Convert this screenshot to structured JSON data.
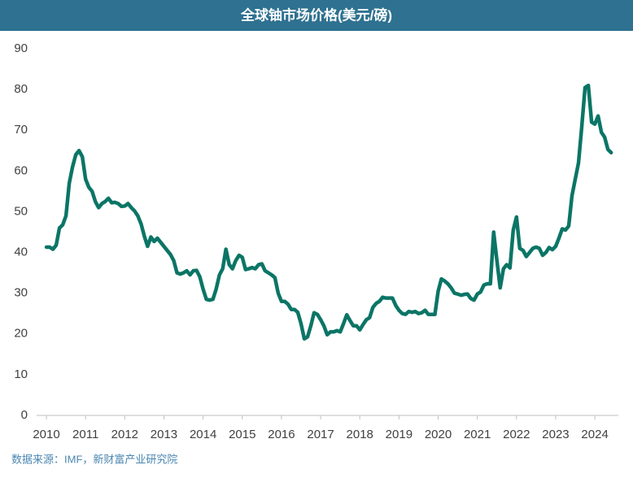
{
  "chart_data": {
    "type": "line",
    "title": "全球铀市场价格(美元/磅)",
    "source": "数据来源：IMF，新财富产业研究院",
    "color": "#0b7566",
    "x": [
      2010.0,
      2010.083,
      2010.167,
      2010.25,
      2010.333,
      2010.417,
      2010.5,
      2010.583,
      2010.667,
      2010.75,
      2010.833,
      2010.917,
      2011.0,
      2011.083,
      2011.167,
      2011.25,
      2011.333,
      2011.417,
      2011.5,
      2011.583,
      2011.667,
      2011.75,
      2011.833,
      2011.917,
      2012.0,
      2012.083,
      2012.167,
      2012.25,
      2012.333,
      2012.417,
      2012.5,
      2012.583,
      2012.667,
      2012.75,
      2012.833,
      2012.917,
      2013.0,
      2013.083,
      2013.167,
      2013.25,
      2013.333,
      2013.417,
      2013.5,
      2013.583,
      2013.667,
      2013.75,
      2013.833,
      2013.917,
      2014.0,
      2014.083,
      2014.167,
      2014.25,
      2014.333,
      2014.417,
      2014.5,
      2014.583,
      2014.667,
      2014.75,
      2014.833,
      2014.917,
      2015.0,
      2015.083,
      2015.167,
      2015.25,
      2015.333,
      2015.417,
      2015.5,
      2015.583,
      2015.667,
      2015.75,
      2015.833,
      2015.917,
      2016.0,
      2016.083,
      2016.167,
      2016.25,
      2016.333,
      2016.417,
      2016.5,
      2016.583,
      2016.667,
      2016.75,
      2016.833,
      2016.917,
      2017.0,
      2017.083,
      2017.167,
      2017.25,
      2017.333,
      2017.417,
      2017.5,
      2017.583,
      2017.667,
      2017.75,
      2017.833,
      2017.917,
      2018.0,
      2018.083,
      2018.167,
      2018.25,
      2018.333,
      2018.417,
      2018.5,
      2018.583,
      2018.667,
      2018.75,
      2018.833,
      2018.917,
      2019.0,
      2019.083,
      2019.167,
      2019.25,
      2019.333,
      2019.417,
      2019.5,
      2019.583,
      2019.667,
      2019.75,
      2019.833,
      2019.917,
      2020.0,
      2020.083,
      2020.167,
      2020.25,
      2020.333,
      2020.417,
      2020.5,
      2020.583,
      2020.667,
      2020.75,
      2020.833,
      2020.917,
      2021.0,
      2021.083,
      2021.167,
      2021.25,
      2021.333,
      2021.417,
      2021.5,
      2021.583,
      2021.667,
      2021.75,
      2021.833,
      2021.917,
      2022.0,
      2022.083,
      2022.167,
      2022.25,
      2022.333,
      2022.417,
      2022.5,
      2022.583,
      2022.667,
      2022.75,
      2022.833,
      2022.917,
      2023.0,
      2023.083,
      2023.167,
      2023.25,
      2023.333,
      2023.417,
      2023.5,
      2023.583,
      2023.667,
      2023.75,
      2023.833,
      2023.917,
      2024.0,
      2024.083,
      2024.167,
      2024.25,
      2024.333,
      2024.417
    ],
    "values": [
      41.3,
      41.3,
      40.8,
      41.8,
      46,
      46.8,
      49,
      57,
      61,
      64,
      65,
      63.5,
      58,
      56,
      55,
      52.5,
      51,
      52,
      52.5,
      53.3,
      52.2,
      52.3,
      52,
      51.3,
      51.4,
      52,
      51,
      50.2,
      49,
      47,
      44,
      41.5,
      43.8,
      42.7,
      43.5,
      42.5,
      41.5,
      40.5,
      39.5,
      38,
      35,
      34.7,
      35,
      35.5,
      34.5,
      35.5,
      35.6,
      34,
      31,
      28.5,
      28.3,
      28.5,
      31,
      34.5,
      36,
      40.8,
      37,
      36,
      38,
      39.3,
      38.8,
      35.8,
      36,
      36.3,
      36,
      37,
      37.2,
      35.5,
      35,
      34.5,
      33.8,
      30,
      28,
      28,
      27.3,
      26,
      26,
      25.3,
      22.5,
      18.8,
      19.3,
      22,
      25.2,
      24.8,
      23.5,
      22,
      19.8,
      20.5,
      20.5,
      20.8,
      20.5,
      22.5,
      24.7,
      23.3,
      22,
      22,
      21,
      22.3,
      23.5,
      24,
      26.5,
      27.5,
      28,
      29,
      28.8,
      28.8,
      28.8,
      27,
      25.8,
      25,
      24.8,
      25.5,
      25.3,
      25.5,
      25,
      25.2,
      25.8,
      24.8,
      24.8,
      24.8,
      30.5,
      33.5,
      33,
      32.3,
      31.3,
      30,
      29.8,
      29.5,
      29.7,
      29.8,
      28.7,
      28.3,
      29.8,
      30.3,
      32,
      32.3,
      32.3,
      45,
      38,
      31.3,
      36,
      37,
      36.2,
      45.5,
      48.7,
      41,
      40.5,
      39,
      40,
      41,
      41.3,
      41,
      39.3,
      40,
      41.2,
      40.7,
      41.5,
      43.5,
      45.8,
      45.5,
      46.5,
      54,
      58,
      62,
      71,
      80.5,
      81,
      72,
      71.5,
      73.5,
      69.5,
      68.3,
      65.3,
      64.5
    ],
    "xlim": [
      2009.75,
      2024.6
    ],
    "xticks": [
      2010,
      2011,
      2012,
      2013,
      2014,
      2015,
      2016,
      2017,
      2018,
      2019,
      2020,
      2021,
      2022,
      2023,
      2024
    ],
    "ylim": [
      0,
      90
    ],
    "yticks": [
      0,
      10,
      20,
      30,
      40,
      50,
      60,
      70,
      80,
      90
    ],
    "grid": false
  }
}
